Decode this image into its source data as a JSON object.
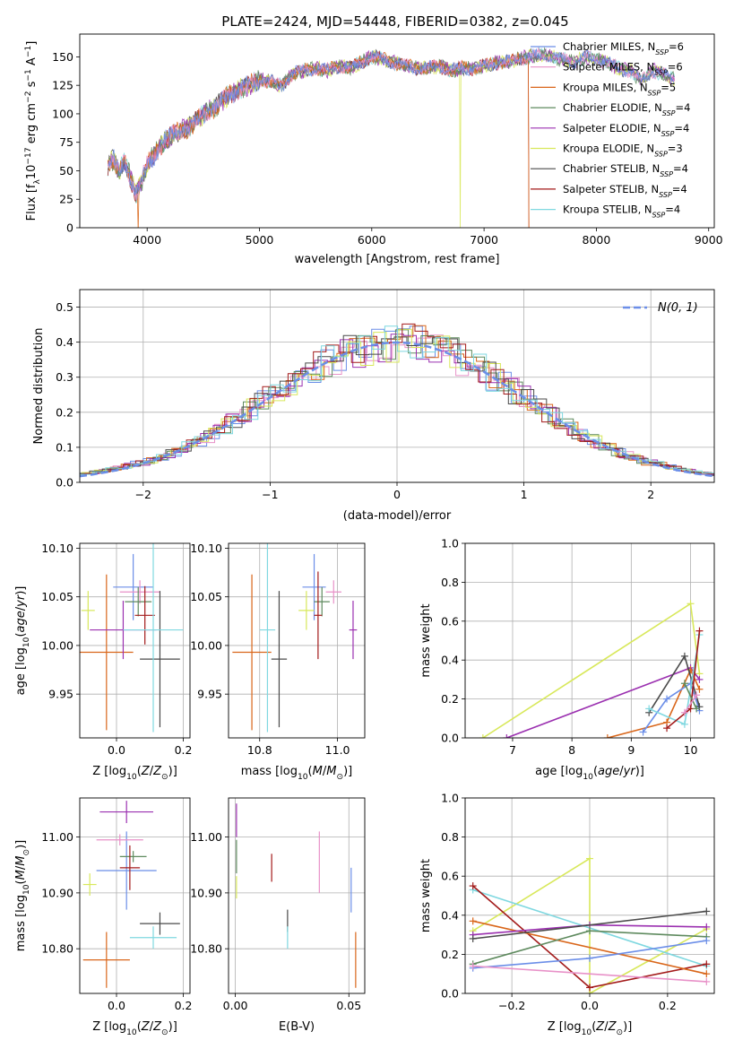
{
  "figure": {
    "title": "PLATE=2424, MJD=54448, FIBERID=0382, z=0.045"
  },
  "series": [
    {
      "name": "Chabrier MILES",
      "n_ssp": "6",
      "color": "#6b8ee8"
    },
    {
      "name": "Salpeter MILES",
      "n_ssp": "6",
      "color": "#e891c8"
    },
    {
      "name": "Kroupa MILES",
      "n_ssp": "5",
      "color": "#d9661a"
    },
    {
      "name": "Chabrier ELODIE",
      "n_ssp": "4",
      "color": "#5e8a5e"
    },
    {
      "name": "Salpeter ELODIE",
      "n_ssp": "4",
      "color": "#9b30b0"
    },
    {
      "name": "Kroupa ELODIE",
      "n_ssp": "3",
      "color": "#d8e85a"
    },
    {
      "name": "Chabrier STELIB",
      "n_ssp": "4",
      "color": "#4a4a4a"
    },
    {
      "name": "Salpeter STELIB",
      "n_ssp": "4",
      "color": "#a31a1a"
    },
    {
      "name": "Kroupa STELIB",
      "n_ssp": "4",
      "color": "#7fd8e0"
    }
  ],
  "chart_data": [
    {
      "id": "spectrum",
      "type": "line",
      "xlabel": "wavelength [Angstrom, rest frame]",
      "ylabel": "Flux [f_λ10^-17 erg cm^-2 s^-1 A^-1]",
      "xlim": [
        3400,
        9050
      ],
      "ylim": [
        0,
        170
      ],
      "xticks": [
        4000,
        5000,
        6000,
        7000,
        8000,
        9000
      ],
      "yticks": [
        0,
        25,
        50,
        75,
        100,
        125,
        150
      ],
      "grid": false,
      "legend": "upper right",
      "x": [
        3650,
        3700,
        3750,
        3800,
        3850,
        3900,
        3950,
        4000,
        4100,
        4200,
        4300,
        4400,
        4500,
        4600,
        4700,
        4800,
        4900,
        5000,
        5100,
        5200,
        5300,
        5400,
        5500,
        5600,
        5700,
        5800,
        5900,
        6000,
        6100,
        6200,
        6300,
        6400,
        6500,
        6600,
        6700,
        6800,
        6900,
        7000,
        7100,
        7200,
        7300,
        7400,
        7500,
        7600,
        7700,
        7800,
        7900,
        8000,
        8100,
        8200,
        8300,
        8400,
        8500,
        8600,
        8700
      ],
      "y": [
        55,
        60,
        50,
        58,
        45,
        30,
        40,
        55,
        70,
        80,
        85,
        90,
        100,
        105,
        115,
        120,
        125,
        130,
        128,
        125,
        135,
        138,
        140,
        138,
        142,
        140,
        145,
        150,
        148,
        145,
        142,
        140,
        140,
        142,
        138,
        140,
        140,
        142,
        145,
        145,
        148,
        150,
        152,
        150,
        148,
        145,
        150,
        148,
        145,
        140,
        138,
        130,
        138,
        135,
        130
      ],
      "drops": [
        {
          "series": "Kroupa MILES",
          "x": 3920
        },
        {
          "series": "Kroupa ELODIE",
          "x": 6790
        },
        {
          "series": "Salpeter STELIB",
          "x": 7400
        },
        {
          "series": "Kroupa MILES",
          "x": 7400
        }
      ]
    },
    {
      "id": "residuals",
      "type": "histogram",
      "xlabel": "(data-model)/error",
      "ylabel": "Normed distribution",
      "xlim": [
        -2.5,
        2.5
      ],
      "ylim": [
        0,
        0.55
      ],
      "xticks": [
        -2,
        -1,
        0,
        1,
        2
      ],
      "yticks": [
        0.0,
        0.1,
        0.2,
        0.3,
        0.4,
        0.5
      ],
      "grid": true,
      "legend": "upper right",
      "reference_curve": {
        "label": "N(0, 1)",
        "mean": 0,
        "sigma": 1,
        "color": "#6b8ee8"
      },
      "bin_width": 0.1
    },
    {
      "id": "age_vs_Z",
      "type": "errorbar",
      "xlabel": "Z [log10(Z/Z⊙)]",
      "ylabel": "age [log10(age/yr)]",
      "xlim": [
        -0.11,
        0.22
      ],
      "ylim": [
        9.905,
        10.105
      ],
      "xticks": [
        0.0,
        0.2
      ],
      "yticks": [
        9.95,
        10.0,
        10.05,
        10.1
      ],
      "grid": true,
      "points": [
        {
          "series": "Chabrier MILES",
          "x": 0.05,
          "y": 10.06,
          "xerr": 0.06,
          "yerr": 0.034
        },
        {
          "series": "Salpeter MILES",
          "x": 0.07,
          "y": 10.055,
          "xerr": 0.06,
          "yerr": 0.012
        },
        {
          "series": "Kroupa MILES",
          "x": -0.03,
          "y": 9.993,
          "xerr": 0.08,
          "yerr": 0.08
        },
        {
          "series": "Chabrier ELODIE",
          "x": 0.065,
          "y": 10.045,
          "xerr": 0.04,
          "yerr": 0.015
        },
        {
          "series": "Salpeter ELODIE",
          "x": 0.02,
          "y": 10.016,
          "xerr": 0.1,
          "yerr": 0.03
        },
        {
          "series": "Kroupa ELODIE",
          "x": -0.085,
          "y": 10.036,
          "xerr": 0.02,
          "yerr": 0.02
        },
        {
          "series": "Chabrier STELIB",
          "x": 0.13,
          "y": 9.986,
          "xerr": 0.06,
          "yerr": 0.07
        },
        {
          "series": "Salpeter STELIB",
          "x": 0.085,
          "y": 10.031,
          "xerr": 0.03,
          "yerr": 0.03
        },
        {
          "series": "Kroupa STELIB",
          "x": 0.11,
          "y": 10.016,
          "xerr": 0.09,
          "yerr": 0.105
        }
      ]
    },
    {
      "id": "age_vs_mass",
      "type": "errorbar",
      "xlabel": "mass [log10(M/M⊙)]",
      "ylabel": "",
      "xlim": [
        10.72,
        11.07
      ],
      "ylim": [
        9.905,
        10.105
      ],
      "xticks": [
        10.8,
        11.0
      ],
      "yticks": [
        9.95,
        10.0,
        10.05,
        10.1
      ],
      "grid": true,
      "points": [
        {
          "series": "Chabrier MILES",
          "x": 10.94,
          "y": 10.06,
          "xerr": 0.03,
          "yerr": 0.034
        },
        {
          "series": "Salpeter MILES",
          "x": 10.99,
          "y": 10.055,
          "xerr": 0.02,
          "yerr": 0.012
        },
        {
          "series": "Kroupa MILES",
          "x": 10.78,
          "y": 9.993,
          "xerr": 0.05,
          "yerr": 0.08
        },
        {
          "series": "Chabrier ELODIE",
          "x": 10.96,
          "y": 10.045,
          "xerr": 0.02,
          "yerr": 0.015
        },
        {
          "series": "Salpeter ELODIE",
          "x": 11.04,
          "y": 10.016,
          "xerr": 0.01,
          "yerr": 0.03
        },
        {
          "series": "Kroupa ELODIE",
          "x": 10.92,
          "y": 10.036,
          "xerr": 0.02,
          "yerr": 0.02
        },
        {
          "series": "Chabrier STELIB",
          "x": 10.85,
          "y": 9.986,
          "xerr": 0.02,
          "yerr": 0.07
        },
        {
          "series": "Salpeter STELIB",
          "x": 10.95,
          "y": 10.031,
          "xerr": 0.01,
          "yerr": 0.045
        },
        {
          "series": "Kroupa STELIB",
          "x": 10.82,
          "y": 10.016,
          "xerr": 0.02,
          "yerr": 0.105
        }
      ]
    },
    {
      "id": "weight_vs_age",
      "type": "line",
      "xlabel": "age [log10(age/yr)]",
      "ylabel": "mass weight",
      "xlim": [
        6.2,
        10.4
      ],
      "ylim": [
        0,
        1.0
      ],
      "xticks": [
        7,
        8,
        9,
        10
      ],
      "yticks": [
        0.0,
        0.2,
        0.4,
        0.6,
        0.8,
        1.0
      ],
      "grid": true,
      "series": [
        {
          "name": "Kroupa ELODIE",
          "x": [
            6.5,
            10.0,
            10.15
          ],
          "y": [
            0.0,
            0.69,
            0.33
          ]
        },
        {
          "name": "Salpeter ELODIE",
          "x": [
            6.9,
            10.0,
            10.15
          ],
          "y": [
            0.0,
            0.36,
            0.3
          ]
        },
        {
          "name": "Kroupa MILES",
          "x": [
            8.6,
            9.6,
            10.0,
            10.15
          ],
          "y": [
            0.0,
            0.08,
            0.35,
            0.25
          ]
        },
        {
          "name": "Chabrier MILES",
          "x": [
            9.2,
            9.6,
            10.0,
            10.15
          ],
          "y": [
            0.03,
            0.2,
            0.28,
            0.14
          ]
        },
        {
          "name": "Chabrier STELIB",
          "x": [
            9.3,
            9.9,
            10.15
          ],
          "y": [
            0.13,
            0.42,
            0.16
          ]
        },
        {
          "name": "Kroupa STELIB",
          "x": [
            9.3,
            9.9,
            10.15
          ],
          "y": [
            0.15,
            0.07,
            0.53
          ]
        },
        {
          "name": "Salpeter STELIB",
          "x": [
            9.6,
            10.0,
            10.15
          ],
          "y": [
            0.05,
            0.15,
            0.55
          ]
        },
        {
          "name": "Chabrier ELODIE",
          "x": [
            9.9,
            10.1
          ],
          "y": [
            0.28,
            0.15
          ]
        },
        {
          "name": "Salpeter MILES",
          "x": [
            9.9,
            10.1
          ],
          "y": [
            0.13,
            0.22
          ]
        }
      ]
    },
    {
      "id": "mass_vs_Z",
      "type": "errorbar",
      "xlabel": "Z [log10(Z/Z⊙)]",
      "ylabel": "mass [log10(M/M⊙)]",
      "xlim": [
        -0.11,
        0.22
      ],
      "ylim": [
        10.72,
        11.07
      ],
      "xticks": [
        0.0,
        0.2
      ],
      "yticks": [
        10.8,
        10.9,
        11.0
      ],
      "grid": true,
      "points": [
        {
          "series": "Chabrier MILES",
          "x": 0.03,
          "y": 10.94,
          "xerr": 0.09,
          "yerr": 0.07
        },
        {
          "series": "Salpeter MILES",
          "x": 0.01,
          "y": 10.995,
          "xerr": 0.07,
          "yerr": 0.01
        },
        {
          "series": "Kroupa MILES",
          "x": -0.03,
          "y": 10.78,
          "xerr": 0.07,
          "yerr": 0.05
        },
        {
          "series": "Chabrier ELODIE",
          "x": 0.05,
          "y": 10.965,
          "xerr": 0.04,
          "yerr": 0.01
        },
        {
          "series": "Salpeter ELODIE",
          "x": 0.03,
          "y": 11.045,
          "xerr": 0.08,
          "yerr": 0.02
        },
        {
          "series": "Kroupa ELODIE",
          "x": -0.08,
          "y": 10.915,
          "xerr": 0.02,
          "yerr": 0.02
        },
        {
          "series": "Chabrier STELIB",
          "x": 0.13,
          "y": 10.845,
          "xerr": 0.06,
          "yerr": 0.02
        },
        {
          "series": "Salpeter STELIB",
          "x": 0.04,
          "y": 10.945,
          "xerr": 0.03,
          "yerr": 0.04
        },
        {
          "series": "Kroupa STELIB",
          "x": 0.11,
          "y": 10.82,
          "xerr": 0.07,
          "yerr": 0.02
        }
      ]
    },
    {
      "id": "mass_vs_ebv",
      "type": "errorbar",
      "xlabel": "E(B-V)",
      "ylabel": "",
      "xlim": [
        -0.003,
        0.057
      ],
      "ylim": [
        10.72,
        11.07
      ],
      "xticks": [
        0.0,
        0.05
      ],
      "yticks": [
        10.8,
        10.9,
        11.0
      ],
      "grid": true,
      "points": [
        {
          "series": "Chabrier MILES",
          "x": 0.051,
          "y": 10.905,
          "xerr": 0,
          "yerr": 0.04
        },
        {
          "series": "Salpeter MILES",
          "x": 0.037,
          "y": 10.955,
          "xerr": 0,
          "yerr": 0.055
        },
        {
          "series": "Kroupa MILES",
          "x": 0.053,
          "y": 10.78,
          "xerr": 0,
          "yerr": 0.05
        },
        {
          "series": "Chabrier ELODIE",
          "x": 0.0005,
          "y": 10.965,
          "xerr": 0,
          "yerr": 0.03
        },
        {
          "series": "Salpeter ELODIE",
          "x": 0.0005,
          "y": 11.03,
          "xerr": 0,
          "yerr": 0.03
        },
        {
          "series": "Kroupa ELODIE",
          "x": 0.0005,
          "y": 10.91,
          "xerr": 0,
          "yerr": 0.02
        },
        {
          "series": "Chabrier STELIB",
          "x": 0.023,
          "y": 10.85,
          "xerr": 0,
          "yerr": 0.02
        },
        {
          "series": "Salpeter STELIB",
          "x": 0.016,
          "y": 10.945,
          "xerr": 0,
          "yerr": 0.025
        },
        {
          "series": "Kroupa STELIB",
          "x": 0.023,
          "y": 10.82,
          "xerr": 0,
          "yerr": 0.02
        }
      ]
    },
    {
      "id": "weight_vs_Z",
      "type": "line",
      "xlabel": "Z [log10(Z/Z⊙)]",
      "ylabel": "mass weight",
      "xlim": [
        -0.32,
        0.32
      ],
      "ylim": [
        0,
        1.0
      ],
      "xticks": [
        -0.2,
        0.0,
        0.2
      ],
      "yticks": [
        0.0,
        0.2,
        0.4,
        0.6,
        0.8,
        1.0
      ],
      "grid": true,
      "series": [
        {
          "name": "Kroupa ELODIE",
          "x": [
            -0.3,
            0.0,
            0.0,
            0.3
          ],
          "y": [
            0.32,
            0.69,
            0.0,
            0.33
          ]
        },
        {
          "name": "Kroupa STELIB",
          "x": [
            -0.3,
            0.3
          ],
          "y": [
            0.53,
            0.14
          ]
        },
        {
          "name": "Salpeter STELIB",
          "x": [
            -0.3,
            0.0,
            0.3
          ],
          "y": [
            0.55,
            0.03,
            0.15
          ]
        },
        {
          "name": "Kroupa MILES",
          "x": [
            -0.3,
            0.3
          ],
          "y": [
            0.37,
            0.1
          ]
        },
        {
          "name": "Salpeter ELODIE",
          "x": [
            -0.3,
            0.0,
            0.3
          ],
          "y": [
            0.3,
            0.35,
            0.34
          ]
        },
        {
          "name": "Chabrier STELIB",
          "x": [
            -0.3,
            0.3
          ],
          "y": [
            0.28,
            0.42
          ]
        },
        {
          "name": "Chabrier ELODIE",
          "x": [
            -0.3,
            0.0,
            0.3
          ],
          "y": [
            0.15,
            0.32,
            0.29
          ]
        },
        {
          "name": "Chabrier MILES",
          "x": [
            -0.3,
            0.0,
            0.3
          ],
          "y": [
            0.13,
            0.18,
            0.27
          ]
        },
        {
          "name": "Salpeter MILES",
          "x": [
            -0.3,
            0.3
          ],
          "y": [
            0.14,
            0.06
          ]
        }
      ]
    }
  ]
}
